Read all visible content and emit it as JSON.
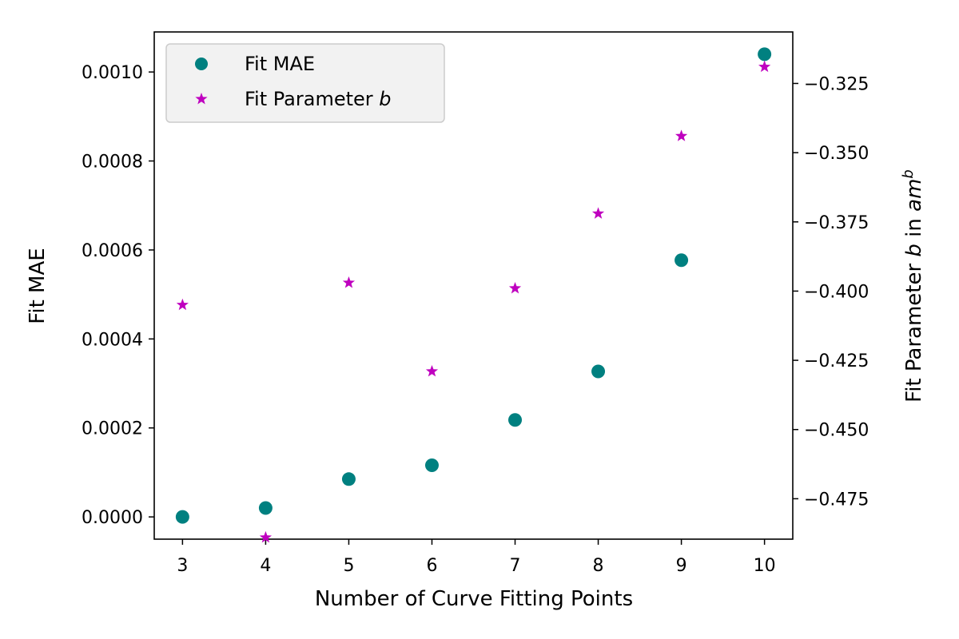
{
  "chart_data": {
    "type": "scatter",
    "xlabel": "Number of Curve Fitting Points",
    "ylabel_left": "Fit MAE",
    "ylabel_right": "Fit Parameter b in am^b",
    "x": [
      3,
      4,
      5,
      6,
      7,
      8,
      9,
      10
    ],
    "xticks": [
      "3",
      "4",
      "5",
      "6",
      "7",
      "8",
      "9",
      "10"
    ],
    "xlim": [
      2.66,
      10.34
    ],
    "ylim_left": [
      -5e-05,
      0.00109
    ],
    "ylim_right": [
      -0.4896,
      -0.3064
    ],
    "yticks_left": [
      "0.0000",
      "0.0002",
      "0.0004",
      "0.0006",
      "0.0008",
      "0.0010"
    ],
    "yticks_right": [
      "−0.475",
      "−0.450",
      "−0.425",
      "−0.400",
      "−0.375",
      "−0.350",
      "−0.325"
    ],
    "series": [
      {
        "name": "Fit MAE",
        "axis": "left",
        "marker": "circle",
        "color": "#008080",
        "values": [
          0.0,
          2e-05,
          8.5e-05,
          0.000116,
          0.000218,
          0.000327,
          0.000577,
          0.00104
        ]
      },
      {
        "name": "Fit Parameter b",
        "axis": "right",
        "marker": "star",
        "color": "#bf00bf",
        "values": [
          -0.405,
          -0.489,
          -0.397,
          -0.429,
          -0.399,
          -0.372,
          -0.344,
          -0.319
        ]
      }
    ],
    "legend": {
      "position": "upper-left",
      "entries": [
        "Fit MAE",
        "Fit Parameter b"
      ]
    },
    "grid": false
  }
}
